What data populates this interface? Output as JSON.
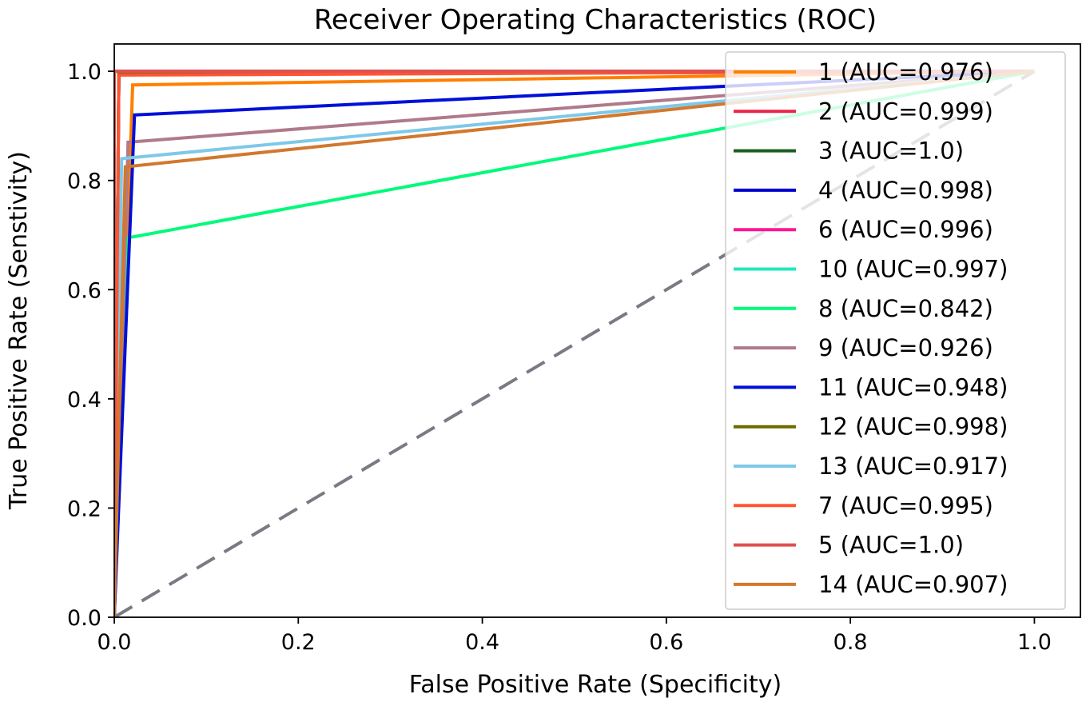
{
  "chart_data": {
    "type": "line",
    "title": "Receiver Operating Characteristics (ROC)",
    "xlabel": "False Positive Rate (Specificity)",
    "ylabel": "True Positive Rate (Senstivity)",
    "xlim": [
      0.0,
      1.05
    ],
    "ylim": [
      0.0,
      1.05
    ],
    "xticks": [
      "0.0",
      "0.2",
      "0.4",
      "0.6",
      "0.8",
      "1.0"
    ],
    "yticks": [
      "0.0",
      "0.2",
      "0.4",
      "0.6",
      "0.8",
      "1.0"
    ],
    "grid": false,
    "legend_position": "right",
    "series": [
      {
        "name": "1 (AUC=0.976)",
        "color": "#ff7f00",
        "x": [
          0,
          0.02,
          1
        ],
        "y": [
          0,
          0.975,
          1
        ]
      },
      {
        "name": "2 (AUC=0.999)",
        "color": "#e8254a",
        "x": [
          0,
          0.005,
          1
        ],
        "y": [
          0,
          0.998,
          1
        ]
      },
      {
        "name": "3 (AUC=1.0)",
        "color": "#1b5e20",
        "x": [
          0,
          0,
          1
        ],
        "y": [
          0,
          1,
          1
        ]
      },
      {
        "name": "4 (AUC=0.998)",
        "color": "#0000cd",
        "x": [
          0,
          0.005,
          1
        ],
        "y": [
          0,
          0.995,
          1
        ]
      },
      {
        "name": "6 (AUC=0.996)",
        "color": "#ff1493",
        "x": [
          0,
          0.005,
          1
        ],
        "y": [
          0,
          0.994,
          1
        ]
      },
      {
        "name": "10 (AUC=0.997)",
        "color": "#20e8c0",
        "x": [
          0,
          0.005,
          1
        ],
        "y": [
          0,
          0.995,
          1
        ]
      },
      {
        "name": "8 (AUC=0.842)",
        "color": "#00fa7a",
        "x": [
          0,
          0.015,
          1
        ],
        "y": [
          0,
          0.695,
          1
        ]
      },
      {
        "name": "9 (AUC=0.926)",
        "color": "#b07a8a",
        "x": [
          0,
          0.015,
          1
        ],
        "y": [
          0,
          0.87,
          1
        ]
      },
      {
        "name": "11 (AUC=0.948)",
        "color": "#0010d8",
        "x": [
          0,
          0.022,
          1
        ],
        "y": [
          0,
          0.92,
          1
        ]
      },
      {
        "name": "12 (AUC=0.998)",
        "color": "#6b6b00",
        "x": [
          0,
          0.005,
          1
        ],
        "y": [
          0,
          0.997,
          1
        ]
      },
      {
        "name": "13 (AUC=0.917)",
        "color": "#7ec8e8",
        "x": [
          0,
          0.008,
          1
        ],
        "y": [
          0,
          0.84,
          1
        ]
      },
      {
        "name": "7 (AUC=0.995)",
        "color": "#ff5533",
        "x": [
          0,
          0.005,
          1
        ],
        "y": [
          0,
          0.993,
          1
        ]
      },
      {
        "name": "5 (AUC=1.0)",
        "color": "#e05050",
        "x": [
          0,
          0,
          1
        ],
        "y": [
          0,
          1,
          1
        ]
      },
      {
        "name": "14 (AUC=0.907)",
        "color": "#d2782d",
        "x": [
          0,
          0.012,
          1
        ],
        "y": [
          0,
          0.825,
          1
        ]
      }
    ],
    "reference_line": {
      "style": "dashed",
      "color": "#7a7a85",
      "x": [
        0,
        1
      ],
      "y": [
        0,
        1
      ]
    }
  }
}
